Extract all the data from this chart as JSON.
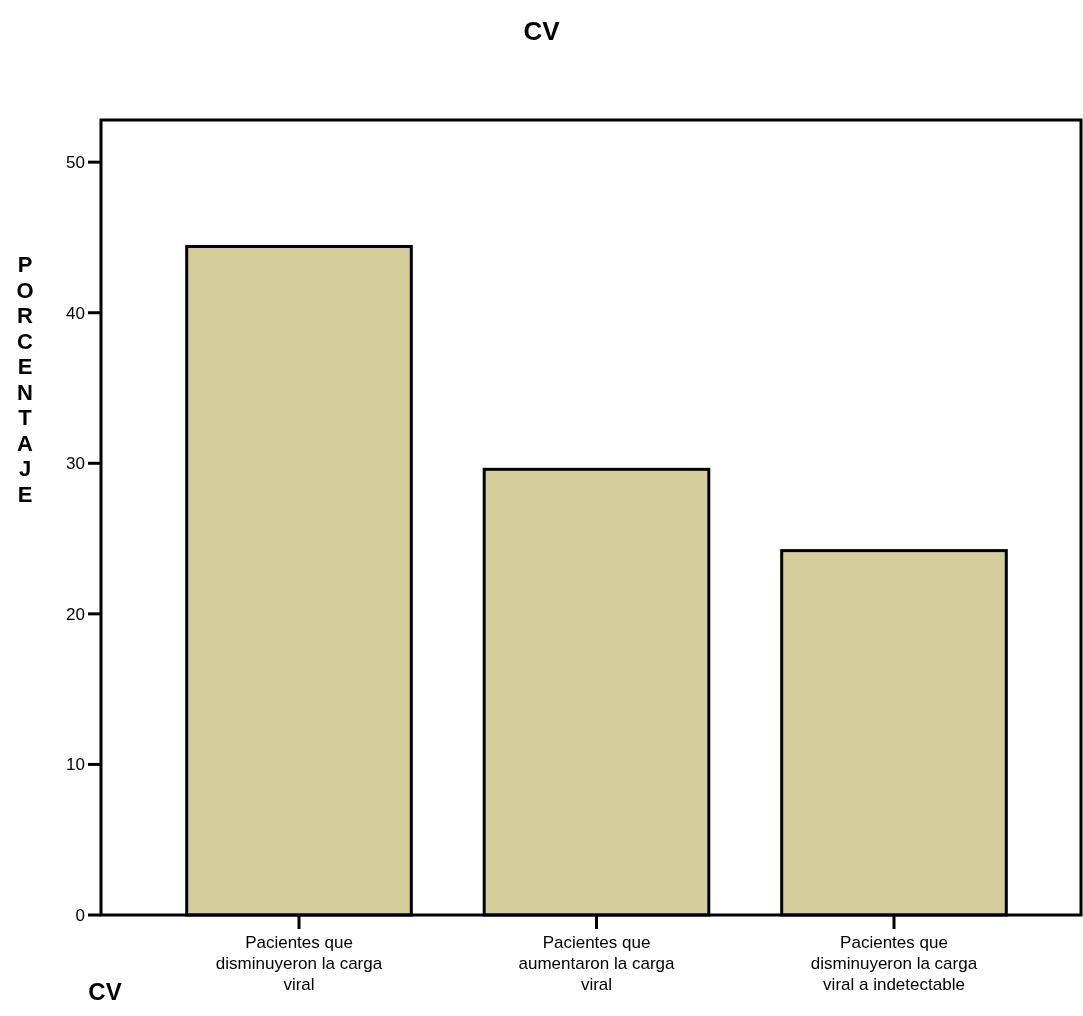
{
  "chart_data": {
    "type": "bar",
    "title": "CV",
    "xlabel": "CV",
    "ylabel": "PORCENTAJE",
    "categories": [
      "Pacientes que disminuyeron la carga viral",
      "Pacientes que aumentaron la carga viral",
      "Pacientes que disminuyeron la carga viral a indetectable"
    ],
    "values": [
      44.4,
      29.6,
      24.2
    ],
    "color": "#d4cf9a",
    "ylim": [
      0,
      52.8
    ],
    "yticks": [
      0,
      10,
      20,
      30,
      40,
      50
    ],
    "grid": false
  }
}
